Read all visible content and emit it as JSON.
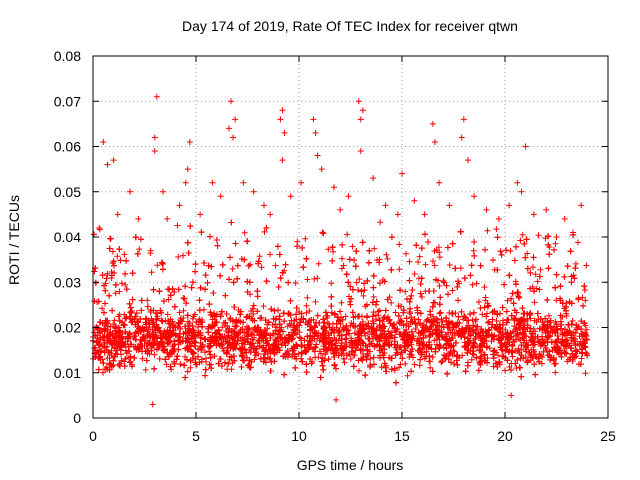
{
  "chart_data": {
    "type": "scatter",
    "title": "Day 174 of 2019, Rate Of TEC Index for receiver qtwn",
    "xlabel": "GPS time / hours",
    "ylabel": "ROTI / TECUs",
    "xlim": [
      0,
      25
    ],
    "ylim": [
      0,
      0.08
    ],
    "xticks": [
      "0",
      "5",
      "10",
      "15",
      "20",
      "25"
    ],
    "yticks": [
      "0",
      "0.01",
      "0.02",
      "0.03",
      "0.04",
      "0.05",
      "0.06",
      "0.07",
      "0.08"
    ],
    "grid": true,
    "marker": "+",
    "color": "#ff0000",
    "series": [
      {
        "name": "ROTI",
        "note": "dense band 0.005-0.035 TECU across 0-24 h; notable peaks listed as points",
        "points": [
          [
            0.3,
            0.042
          ],
          [
            0.5,
            0.061
          ],
          [
            0.7,
            0.056
          ],
          [
            1.0,
            0.057
          ],
          [
            1.2,
            0.045
          ],
          [
            1.8,
            0.05
          ],
          [
            2.2,
            0.044
          ],
          [
            2.8,
            0.037
          ],
          [
            3.0,
            0.062
          ],
          [
            3.1,
            0.071
          ],
          [
            3.0,
            0.059
          ],
          [
            3.4,
            0.05
          ],
          [
            3.6,
            0.044
          ],
          [
            4.2,
            0.047
          ],
          [
            4.6,
            0.055
          ],
          [
            4.7,
            0.061
          ],
          [
            4.5,
            0.052
          ],
          [
            5.2,
            0.045
          ],
          [
            5.8,
            0.052
          ],
          [
            6.2,
            0.049
          ],
          [
            6.6,
            0.064
          ],
          [
            6.7,
            0.07
          ],
          [
            6.8,
            0.062
          ],
          [
            6.9,
            0.066
          ],
          [
            7.3,
            0.052
          ],
          [
            7.8,
            0.05
          ],
          [
            8.3,
            0.047
          ],
          [
            8.6,
            0.045
          ],
          [
            9.1,
            0.066
          ],
          [
            9.2,
            0.068
          ],
          [
            9.3,
            0.063
          ],
          [
            9.2,
            0.057
          ],
          [
            9.6,
            0.049
          ],
          [
            10.1,
            0.052
          ],
          [
            10.7,
            0.066
          ],
          [
            10.8,
            0.063
          ],
          [
            10.9,
            0.058
          ],
          [
            11.1,
            0.055
          ],
          [
            11.7,
            0.051
          ],
          [
            12.0,
            0.046
          ],
          [
            12.4,
            0.049
          ],
          [
            12.9,
            0.07
          ],
          [
            13.0,
            0.066
          ],
          [
            13.1,
            0.068
          ],
          [
            13.0,
            0.059
          ],
          [
            13.6,
            0.053
          ],
          [
            14.2,
            0.047
          ],
          [
            14.8,
            0.045
          ],
          [
            15.0,
            0.054
          ],
          [
            15.6,
            0.048
          ],
          [
            16.1,
            0.045
          ],
          [
            16.5,
            0.065
          ],
          [
            16.6,
            0.061
          ],
          [
            16.8,
            0.052
          ],
          [
            17.3,
            0.047
          ],
          [
            17.9,
            0.062
          ],
          [
            18.0,
            0.066
          ],
          [
            18.2,
            0.057
          ],
          [
            18.5,
            0.049
          ],
          [
            19.1,
            0.046
          ],
          [
            19.7,
            0.044
          ],
          [
            20.2,
            0.047
          ],
          [
            20.6,
            0.052
          ],
          [
            20.8,
            0.05
          ],
          [
            21.0,
            0.06
          ],
          [
            21.4,
            0.045
          ],
          [
            22.0,
            0.046
          ],
          [
            22.5,
            0.04
          ],
          [
            22.9,
            0.044
          ],
          [
            23.3,
            0.041
          ],
          [
            23.7,
            0.047
          ],
          [
            23.9,
            0.026
          ],
          [
            2.9,
            0.003
          ],
          [
            11.8,
            0.004
          ],
          [
            20.3,
            0.005
          ]
        ]
      }
    ]
  }
}
